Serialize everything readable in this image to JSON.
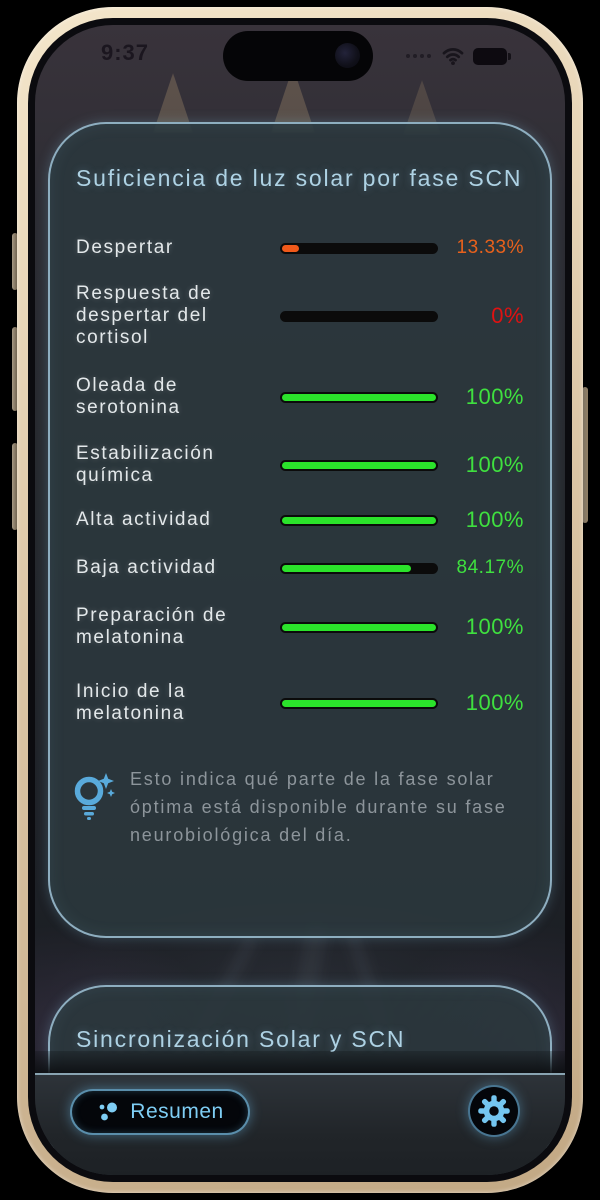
{
  "status_bar": {
    "time": "9:37",
    "icons": [
      "cellular-signal-icon",
      "wifi-icon",
      "battery-icon"
    ]
  },
  "card_sunlight": {
    "title": "Suficiencia de luz solar por fase SCN",
    "rows": [
      {
        "label": "Despertar",
        "value": "13.33%",
        "pct": 13.33,
        "state": "low"
      },
      {
        "label": "Respuesta de despertar del cortisol",
        "value": "0%",
        "pct": 0,
        "state": "zero"
      },
      {
        "label": "Oleada de serotonina",
        "value": "100%",
        "pct": 100,
        "state": "full"
      },
      {
        "label": "Estabilización química",
        "value": "100%",
        "pct": 100,
        "state": "full"
      },
      {
        "label": "Alta actividad",
        "value": "100%",
        "pct": 100,
        "state": "full"
      },
      {
        "label": "Baja actividad",
        "value": "84.17%",
        "pct": 84.17,
        "state": "high"
      },
      {
        "label": "Preparación de melatonina",
        "value": "100%",
        "pct": 100,
        "state": "full"
      },
      {
        "label": "Inicio de la melatonina",
        "value": "100%",
        "pct": 100,
        "state": "full"
      }
    ],
    "note": "Esto indica qué parte de la fase solar óptima está disponible durante su fase neurobiológica del día.",
    "note_icon": "lightbulb-sparkle-icon"
  },
  "card_sync": {
    "title": "Sincronización Solar y SCN"
  },
  "bottom_bar": {
    "summary_label": "Resumen",
    "summary_icon": "dots-cluster-icon",
    "settings_icon": "gear-icon"
  },
  "colors": {
    "green": "#2be32b",
    "green_text": "#3fe03f",
    "orange": "#f0591a",
    "orange_text": "#e8611c",
    "red_text": "#df1212",
    "accent": "#7ecdf4",
    "title": "#aed2e4",
    "label": "#e3e8ea",
    "note": "#8d959b",
    "bar_track": "#0b0b0b",
    "icon_blue": "#59aadb"
  }
}
